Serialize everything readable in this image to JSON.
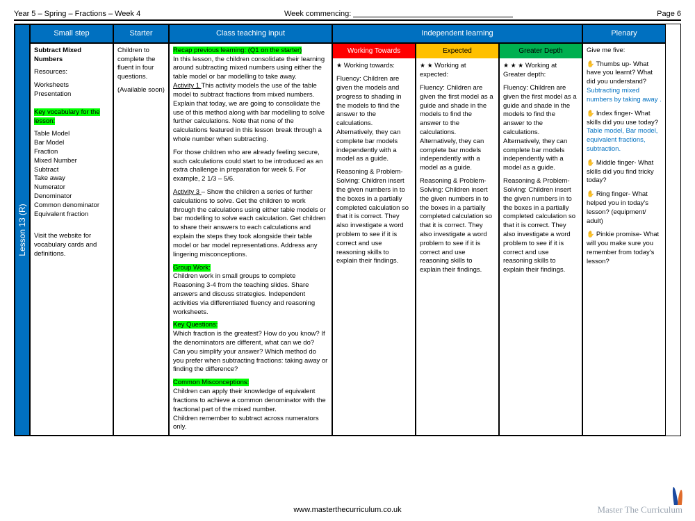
{
  "top": {
    "left": "Year 5 – Spring – Fractions – Week 4",
    "mid_label": "Week commencing:",
    "right": "Page 6"
  },
  "headers": {
    "smallstep": "Small step",
    "starter": "Starter",
    "classinput": "Class teaching input",
    "independent": "Independent learning",
    "plenary": "Plenary"
  },
  "sidelabel": "Lesson 13 (R)",
  "sub": {
    "wt": "Working Towards",
    "ex": "Expected",
    "gd": "Greater Depth"
  },
  "smallstep": {
    "title": "Subtract Mixed Numbers",
    "res_label": "Resources:",
    "res1": "Worksheets",
    "res2": "Presentation",
    "keyvocab_label": "Key vocabulary for the lesson:",
    "vocab": "Table Model\nBar Model\nFraction\nMixed Number\nSubtract\nTake away\nNumerator\nDenominator\nCommon denominator\nEquivalent fraction",
    "visit": "Visit the website for vocabulary cards and definitions."
  },
  "starter": {
    "p1": "Children to complete the fluent in four questions.",
    "p2": "(Available soon)"
  },
  "classinput": {
    "recap_label": "Recap previous learning: (Q1 on the starter)",
    "recap": "In this lesson, the children consolidate their learning around subtracting mixed numbers using  either the table model or bar modelling to take away.",
    "act1_label": "Activity 1 ",
    "act1": "This activity models the use of the table model to subtract fractions from mixed numbers. Explain that today, we are going to consolidate the use of this method along with bar modelling to solve further calculations. Note that none of the calculations featured in this lesson break through a whole number when subtracting.",
    "act1b": "For those children who are already feeling secure, such calculations could start to be introduced as an extra challenge in preparation for week 5. For example, 2 1/3 – 5/6.",
    "act3_label": "Activity 3 ",
    "act3": "– Show the children a series of further calculations to solve. Get the children to work through the calculations using either table models or bar modelling to solve each calculation. Get children to share their answers to each calculations and explain the steps they took alongside their table model or bar model representations. Address any lingering misconceptions.",
    "group_label": "Group Work:",
    "group": "Children work in small groups to complete Reasoning 3-4 from the teaching slides. Share answers and discuss strategies. Independent activities via differentiated fluency and reasoning worksheets.",
    "keyq_label": "Key Questions:",
    "keyq": "Which fraction is the greatest? How do you know? If the denominators are different, what can we do? Can you simplify your answer? Which method do you prefer when subtracting fractions: taking away or finding the difference?",
    "misc_label": "Common Misconceptions:",
    "misc1": "Children can apply their knowledge of equivalent fractions to achieve a common denominator with the fractional part of the mixed number.",
    "misc2": "Children remember to subtract across numerators only."
  },
  "wt": {
    "stars": "★",
    "head": "  Working towards:",
    "fluency": "Fluency: Children are given the models and progress to shading in the models to find the answer to the calculations. Alternatively, they can complete bar models independently with a model as a guide.",
    "rps": "Reasoning & Problem-Solving: Children insert the given numbers in to the boxes in a partially completed calculation so that it is correct. They also investigate a word problem  to see if it is correct and use reasoning skills to explain their findings."
  },
  "ex": {
    "stars": "★ ★",
    "head": " Working at expected:",
    "fluency": "Fluency: Children are given the first model as a guide and shade in the models to find the answer to the calculations. Alternatively, they can complete bar models independently with a model as a guide.",
    "rps": "Reasoning & Problem-Solving: Children insert the given numbers in to the boxes in a partially completed calculation so that it is correct. They also investigate a word problem  to see if it is correct and use reasoning skills to explain their findings."
  },
  "gd": {
    "stars": "★ ★ ★",
    "head": " Working at Greater depth:",
    "fluency": "Fluency: Children are given the first model as a guide and shade in the models to find the answer to the calculations. Alternatively, they can complete bar models independently with a model as a guide.",
    "rps": "Reasoning & Problem-Solving: Children insert the given numbers in to the boxes in a partially completed calculation so that it is correct. They also investigate a word problem  to see if it is correct and use reasoning skills to explain their findings."
  },
  "plenary": {
    "intro": "Give me five:",
    "thumb_icon": "✋",
    "thumb": " Thumbs up- What have you learnt? What did you understand?",
    "thumb_blue": "Subtracting mixed numbers by taking away .",
    "index": " Index finger- What skills did you use today?",
    "index_blue": "Table model, Bar model, equivalent fractions, subtraction.",
    "middle": " Middle finger- What skills did you find tricky today?",
    "ring": " Ring finger- What helped you in today's lesson? (equipment/ adult)",
    "pinkie": " Pinkie promise- What will you make sure you remember from today's lesson?"
  },
  "footer": {
    "url": "www.masterthecurriculum.co.uk",
    "brand": "Master The Curriculum"
  }
}
